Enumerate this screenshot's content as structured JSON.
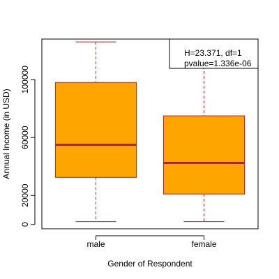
{
  "chart_data": {
    "type": "boxplot",
    "xlabel": "Gender of Respondent",
    "ylabel": "Annual Income (in USD)",
    "ylim": [
      -3000,
      128000
    ],
    "yticks": [
      0,
      20000,
      60000,
      100000
    ],
    "categories": [
      "male",
      "female"
    ],
    "boxes": [
      {
        "category": "male",
        "min": 2000,
        "q1": 32500,
        "median": 55000,
        "q3": 98000,
        "max": 126000
      },
      {
        "category": "female",
        "min": 2000,
        "q1": 21000,
        "median": 42500,
        "q3": 75000,
        "max": 126000
      }
    ],
    "annotation": {
      "line1": "H=23.371, df=1",
      "line2": "pvalue=1.336e-06",
      "placement": "top-right"
    },
    "colors": {
      "box_fill": "#FFA500",
      "box_border": "#A52A2A",
      "median": "#A52A2A",
      "whisker": "#A52A2A",
      "frame": "#000000"
    }
  }
}
